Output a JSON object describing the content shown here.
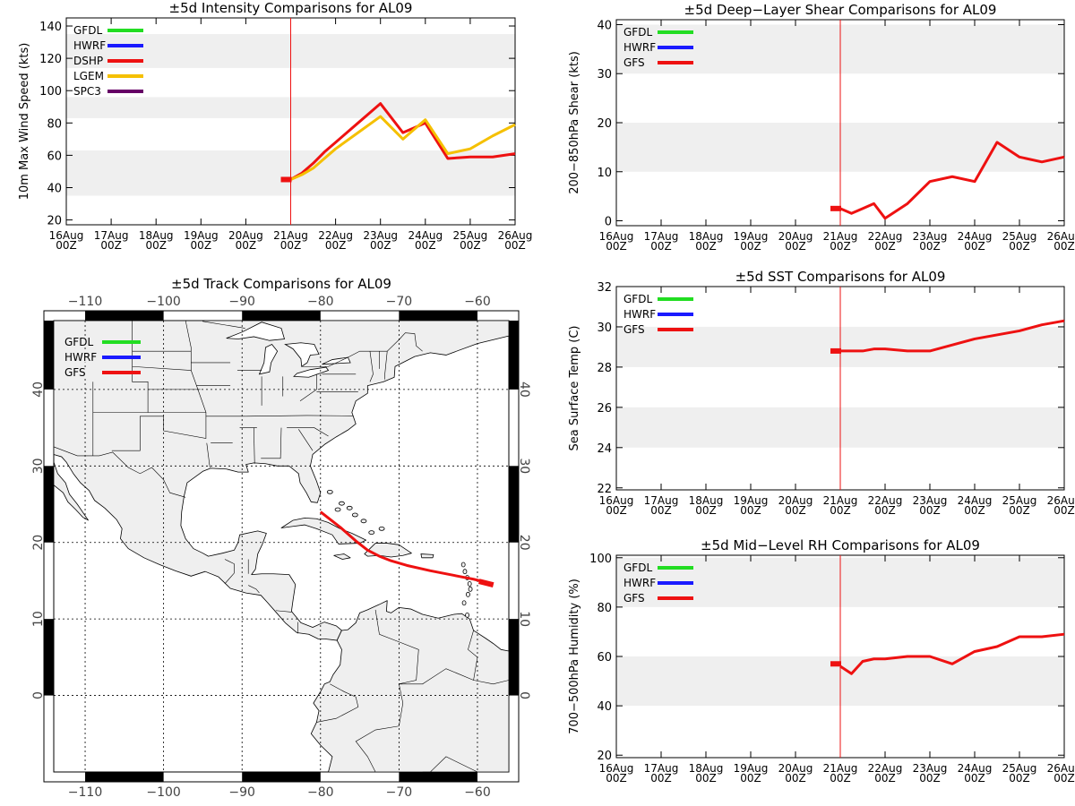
{
  "chart_data": [
    {
      "id": "intensity",
      "type": "line",
      "title": "±5d Intensity Comparisons for AL09",
      "ylabel": "10m Max Wind Speed (kts)",
      "xlabel": "",
      "ylim": [
        17,
        145
      ],
      "yticks": [
        20,
        40,
        60,
        80,
        100,
        120,
        140
      ],
      "bands": [
        [
          35,
          63
        ],
        [
          83,
          96
        ],
        [
          114,
          135
        ]
      ],
      "xticks": [
        "16Aug 00Z",
        "17Aug 00Z",
        "18Aug 00Z",
        "19Aug 00Z",
        "20Aug 00Z",
        "21Aug 00Z",
        "22Aug 00Z",
        "23Aug 00Z",
        "24Aug 00Z",
        "25Aug 00Z",
        "26Aug 00Z"
      ],
      "x_unit": "days since 16Aug 00Z",
      "current_time": 5,
      "legend": [
        {
          "name": "GFDL",
          "color": "#22dd22"
        },
        {
          "name": "HWRF",
          "color": "#1a1aff"
        },
        {
          "name": "DSHP",
          "color": "#ee1111"
        },
        {
          "name": "LGEM",
          "color": "#f5c000"
        },
        {
          "name": "SPC3",
          "color": "#660066"
        }
      ],
      "series": [
        {
          "name": "DSHP",
          "color": "#ee1111",
          "x": [
            5,
            5.25,
            5.5,
            5.75,
            6,
            6.5,
            7,
            7.5,
            7.75,
            8,
            8.5,
            9,
            9.5,
            10
          ],
          "y": [
            45,
            49,
            55,
            62,
            68,
            80,
            92,
            74,
            77,
            80,
            58,
            59,
            59,
            61
          ]
        },
        {
          "name": "LGEM",
          "color": "#f5c000",
          "x": [
            5,
            5.25,
            5.5,
            5.75,
            6,
            6.5,
            7,
            7.5,
            7.75,
            8,
            8.5,
            9,
            9.5,
            10
          ],
          "y": [
            45,
            48,
            52,
            58,
            64,
            74,
            84,
            70,
            76,
            82,
            61,
            64,
            72,
            79
          ]
        }
      ],
      "initial_marker": {
        "x": 4.9,
        "y": 45,
        "color": "#ee1111"
      }
    },
    {
      "id": "shear",
      "type": "line",
      "title": "±5d Deep−Layer Shear Comparisons for AL09",
      "ylabel": "200−850hPa Shear (kts)",
      "xlabel": "",
      "ylim": [
        -1,
        41
      ],
      "yticks": [
        0,
        10,
        20,
        30,
        40
      ],
      "bands": [
        [
          10,
          20
        ],
        [
          30,
          40
        ]
      ],
      "xticks": [
        "16Aug 00Z",
        "17Aug 00Z",
        "18Aug 00Z",
        "19Aug 00Z",
        "20Aug 00Z",
        "21Aug 00Z",
        "22Aug 00Z",
        "23Aug 00Z",
        "24Aug 00Z",
        "25Aug 00Z",
        "26Aug 00Z"
      ],
      "x_unit": "days since 16Aug 00Z",
      "current_time": 5,
      "legend": [
        {
          "name": "GFDL",
          "color": "#22dd22"
        },
        {
          "name": "HWRF",
          "color": "#1a1aff"
        },
        {
          "name": "GFS",
          "color": "#ee1111"
        }
      ],
      "series": [
        {
          "name": "GFS",
          "color": "#ee1111",
          "x": [
            5,
            5.25,
            5.5,
            5.75,
            6,
            6.5,
            7,
            7.5,
            8,
            8.5,
            9,
            9.5,
            10
          ],
          "y": [
            2.5,
            1.5,
            2.5,
            3.5,
            0.5,
            3.5,
            8,
            9,
            8,
            16,
            13,
            12,
            13
          ]
        }
      ],
      "initial_marker": {
        "x": 4.9,
        "y": 2.5,
        "color": "#ee1111"
      }
    },
    {
      "id": "sst",
      "type": "line",
      "title": "±5d SST Comparisons for AL09",
      "ylabel": "Sea Surface Temp (C)",
      "xlabel": "",
      "ylim": [
        21.9,
        32
      ],
      "yticks": [
        22,
        24,
        26,
        28,
        30,
        32
      ],
      "bands": [
        [
          24,
          26
        ],
        [
          28,
          30
        ]
      ],
      "xticks": [
        "16Aug 00Z",
        "17Aug 00Z",
        "18Aug 00Z",
        "19Aug 00Z",
        "20Aug 00Z",
        "21Aug 00Z",
        "22Aug 00Z",
        "23Aug 00Z",
        "24Aug 00Z",
        "25Aug 00Z",
        "26Aug 00Z"
      ],
      "x_unit": "days since 16Aug 00Z",
      "current_time": 5,
      "legend": [
        {
          "name": "GFDL",
          "color": "#22dd22"
        },
        {
          "name": "HWRF",
          "color": "#1a1aff"
        },
        {
          "name": "GFS",
          "color": "#ee1111"
        }
      ],
      "series": [
        {
          "name": "GFS",
          "color": "#ee1111",
          "x": [
            5,
            5.5,
            5.75,
            6,
            6.5,
            7,
            7.5,
            8,
            8.5,
            9,
            9.5,
            10
          ],
          "y": [
            28.8,
            28.8,
            28.9,
            28.9,
            28.8,
            28.8,
            29.1,
            29.4,
            29.6,
            29.8,
            30.1,
            30.3
          ]
        }
      ],
      "initial_marker": {
        "x": 4.9,
        "y": 28.8,
        "color": "#ee1111"
      }
    },
    {
      "id": "rh",
      "type": "line",
      "title": "±5d Mid−Level RH Comparisons for AL09",
      "ylabel": "700−500hPa Humidity (%)",
      "xlabel": "",
      "ylim": [
        19,
        101
      ],
      "yticks": [
        20,
        40,
        60,
        80,
        100
      ],
      "bands": [
        [
          40,
          60
        ],
        [
          80,
          100
        ]
      ],
      "xticks": [
        "16Aug 00Z",
        "17Aug 00Z",
        "18Aug 00Z",
        "19Aug 00Z",
        "20Aug 00Z",
        "21Aug 00Z",
        "22Aug 00Z",
        "23Aug 00Z",
        "24Aug 00Z",
        "25Aug 00Z",
        "26Aug 00Z"
      ],
      "x_unit": "days since 16Aug 00Z",
      "current_time": 5,
      "legend": [
        {
          "name": "GFDL",
          "color": "#22dd22"
        },
        {
          "name": "HWRF",
          "color": "#1a1aff"
        },
        {
          "name": "GFS",
          "color": "#ee1111"
        }
      ],
      "series": [
        {
          "name": "GFS",
          "color": "#ee1111",
          "x": [
            5,
            5.25,
            5.5,
            5.75,
            6,
            6.5,
            7,
            7.5,
            8,
            8.5,
            9,
            9.5,
            10
          ],
          "y": [
            56,
            53,
            58,
            59,
            59,
            60,
            60,
            57,
            62,
            64,
            68,
            68,
            69
          ]
        }
      ],
      "initial_marker": {
        "x": 4.9,
        "y": 57,
        "color": "#ee1111"
      }
    },
    {
      "id": "track",
      "type": "map",
      "title": "±5d Track Comparisons for AL09",
      "lon_range": [
        -114,
        -56
      ],
      "lat_range": [
        -10,
        49
      ],
      "lon_ticks": [
        -110,
        -100,
        -90,
        -80,
        -70,
        -60
      ],
      "lat_ticks": [
        0,
        10,
        20,
        30,
        40
      ],
      "legend": [
        {
          "name": "GFDL",
          "color": "#22dd22"
        },
        {
          "name": "HWRF",
          "color": "#1a1aff"
        },
        {
          "name": "GFS",
          "color": "#ee1111"
        }
      ],
      "tracks": [
        {
          "name": "GFS",
          "color": "#ee1111",
          "lon": [
            -58.5,
            -60.5,
            -63,
            -66,
            -69,
            -71,
            -72.5,
            -74,
            -75.5,
            -77.5,
            -80
          ],
          "lat": [
            14.7,
            15.2,
            15.7,
            16.3,
            17.0,
            17.6,
            18.2,
            19.0,
            20.2,
            22.0,
            24.0
          ]
        }
      ],
      "initial_marker": {
        "lon": -59,
        "lat": 14.8,
        "color": "#ee1111"
      }
    }
  ]
}
